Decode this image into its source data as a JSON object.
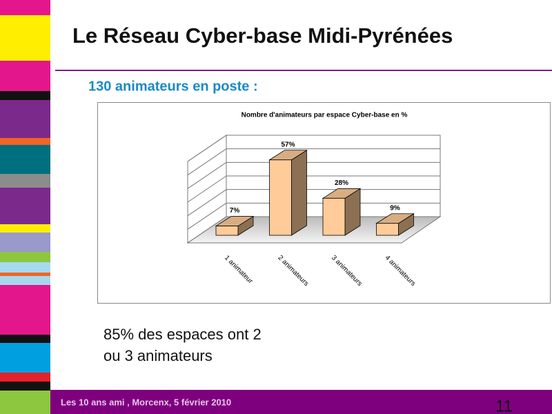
{
  "slide": {
    "title": "Le Réseau Cyber-base Midi-Pyrénées",
    "subtitle": "130 animateurs en poste :",
    "body": [
      "85% des espaces ont 2",
      "ou 3 animateurs"
    ],
    "footer": "Les 10 ans ami , Morcenx, 5 février 2010",
    "page_number": "11"
  },
  "chart_data": {
    "type": "bar3d",
    "title": "Nombre d'animateurs par espace Cyber-base en %",
    "categories": [
      "1 animateur",
      "2 animateurs",
      "3 animateurs",
      "4 animateurs"
    ],
    "values": [
      7,
      57,
      28,
      9
    ],
    "value_labels": [
      "7%",
      "57%",
      "28%",
      "9%"
    ],
    "color": "#ffcc99",
    "ylim": [
      0,
      60
    ],
    "yticks": [
      0,
      10,
      20,
      30,
      40,
      50,
      60
    ],
    "grid": true
  }
}
